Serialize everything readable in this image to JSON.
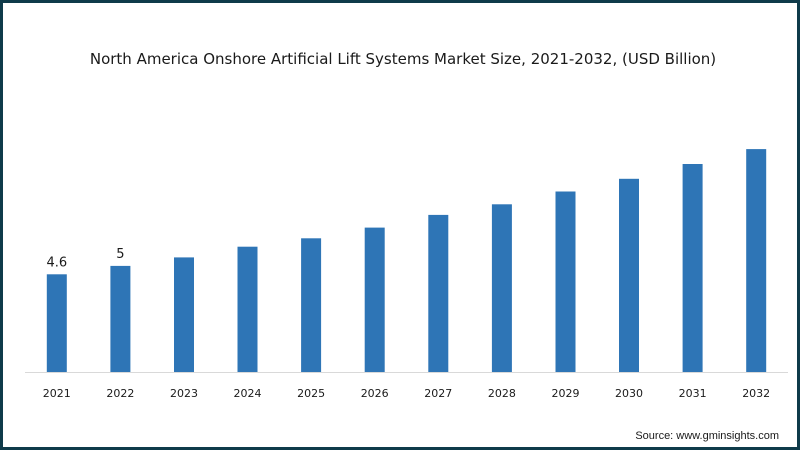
{
  "chart_data": {
    "type": "bar",
    "title": "North America Onshore Artificial Lift Systems Market Size, 2021-2032, (USD Billion)",
    "categories": [
      "2021",
      "2022",
      "2023",
      "2024",
      "2025",
      "2026",
      "2027",
      "2028",
      "2029",
      "2030",
      "2031",
      "2032"
    ],
    "values": [
      4.6,
      5.0,
      5.4,
      5.9,
      6.3,
      6.8,
      7.4,
      7.9,
      8.5,
      9.1,
      9.8,
      10.5
    ],
    "data_labels": [
      "4.6",
      "5",
      "",
      "",
      "",
      "",
      "",
      "",
      "",
      "",
      "",
      ""
    ],
    "ylim": [
      0,
      12.2
    ],
    "bar_color": "#2e75b6",
    "grid": false,
    "legend": "none"
  },
  "source": "Source: www.gminsights.com",
  "colors": {
    "frame_border": "#0f3b4a",
    "axis_line": "#d9d9d9",
    "text": "#1a1a1a"
  }
}
